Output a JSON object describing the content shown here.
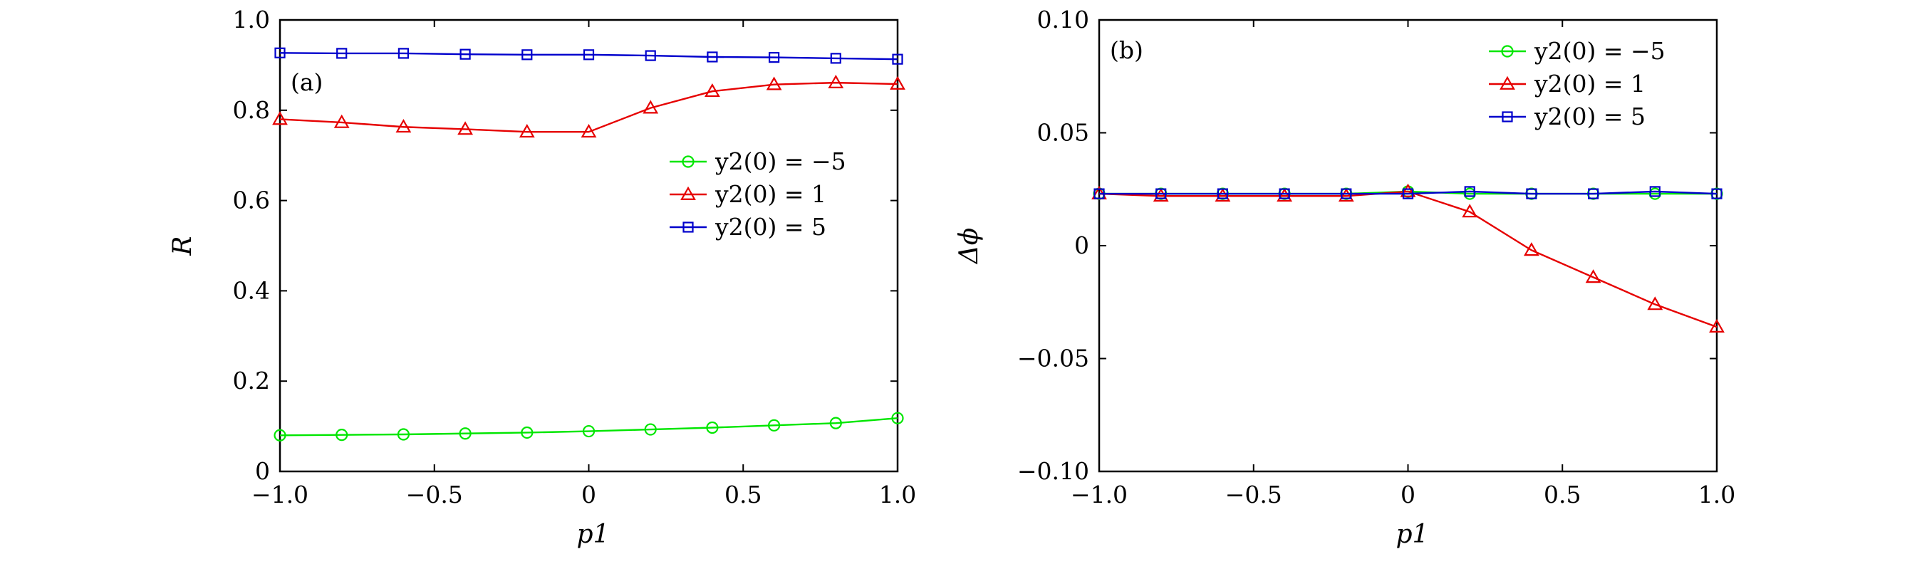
{
  "chart_data": [
    {
      "type": "line",
      "panel_label": "(a)",
      "xlabel": "p1",
      "ylabel": "R",
      "xlim": [
        -1.0,
        1.0
      ],
      "ylim": [
        0,
        1.0
      ],
      "xticks": [
        -1.0,
        -0.5,
        0,
        0.5,
        1.0
      ],
      "xtick_labels": [
        "−1.0",
        "−0.5",
        "0",
        "0.5",
        "1.0"
      ],
      "yticks": [
        0,
        0.2,
        0.4,
        0.6,
        0.8,
        1.0
      ],
      "ytick_labels": [
        "0",
        "0.2",
        "0.4",
        "0.6",
        "0.8",
        "1.0"
      ],
      "grid": false,
      "legend_position": "center-right",
      "x": [
        -1.0,
        -0.8,
        -0.6,
        -0.4,
        -0.2,
        0,
        0.2,
        0.4,
        0.6,
        0.8,
        1.0
      ],
      "series": [
        {
          "name": "y2(0) = −5",
          "color": "#00e600",
          "marker": "circle",
          "values": [
            0.08,
            0.081,
            0.082,
            0.084,
            0.086,
            0.089,
            0.093,
            0.097,
            0.102,
            0.107,
            0.118
          ]
        },
        {
          "name": "y2(0) = 1",
          "color": "#e60000",
          "marker": "triangle",
          "values": [
            0.78,
            0.773,
            0.763,
            0.758,
            0.752,
            0.752,
            0.805,
            0.842,
            0.857,
            0.861,
            0.858
          ]
        },
        {
          "name": "y2(0) = 5",
          "color": "#0000cc",
          "marker": "square",
          "values": [
            0.927,
            0.926,
            0.926,
            0.924,
            0.923,
            0.923,
            0.921,
            0.918,
            0.917,
            0.915,
            0.913
          ]
        }
      ]
    },
    {
      "type": "line",
      "panel_label": "(b)",
      "xlabel": "p1",
      "ylabel": "Δϕ",
      "xlim": [
        -1.0,
        1.0
      ],
      "ylim": [
        -0.1,
        0.1
      ],
      "xticks": [
        -1.0,
        -0.5,
        0,
        0.5,
        1.0
      ],
      "xtick_labels": [
        "−1.0",
        "−0.5",
        "0",
        "0.5",
        "1.0"
      ],
      "yticks": [
        -0.1,
        -0.05,
        0,
        0.05,
        0.1
      ],
      "ytick_labels": [
        "−0.10",
        "−0.05",
        "0",
        "0.05",
        "0.10"
      ],
      "grid": false,
      "legend_position": "top-right",
      "x": [
        -1.0,
        -0.8,
        -0.6,
        -0.4,
        -0.2,
        0,
        0.2,
        0.4,
        0.6,
        0.8,
        1.0
      ],
      "series": [
        {
          "name": "y2(0) = −5",
          "color": "#00e600",
          "marker": "circle",
          "values": [
            0.023,
            0.023,
            0.023,
            0.023,
            0.023,
            0.024,
            0.023,
            0.023,
            0.023,
            0.023,
            0.023
          ]
        },
        {
          "name": "y2(0) = 1",
          "color": "#e60000",
          "marker": "triangle",
          "values": [
            0.023,
            0.022,
            0.022,
            0.022,
            0.022,
            0.024,
            0.015,
            -0.002,
            -0.014,
            -0.026,
            -0.036
          ]
        },
        {
          "name": "y2(0) = 5",
          "color": "#0000cc",
          "marker": "square",
          "values": [
            0.023,
            0.023,
            0.023,
            0.023,
            0.023,
            0.023,
            0.024,
            0.023,
            0.023,
            0.024,
            0.023
          ]
        }
      ]
    }
  ]
}
